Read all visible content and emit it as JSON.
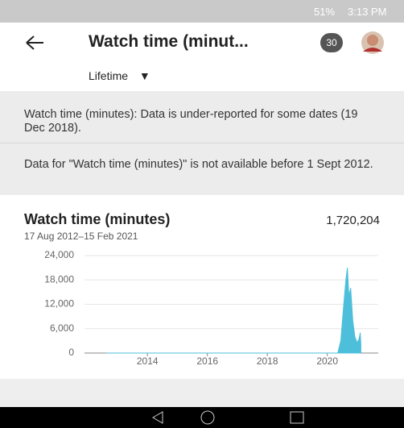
{
  "status_bar": {
    "battery": "51%",
    "time": "3:13 PM"
  },
  "header": {
    "title": "Watch time (minut...",
    "badge": "30",
    "period": "Lifetime"
  },
  "notices": [
    "Watch time (minutes): Data is under-reported for some dates (19 Dec 2018).",
    "Data for \"Watch time (minutes)\" is not available before 1 Sept 2012."
  ],
  "chart_data": {
    "type": "area",
    "title": "Watch time (minutes)",
    "total": "1,720,204",
    "subtitle": "17 Aug 2012–15 Feb 2021",
    "x": [
      2012.63,
      2020.35,
      2020.45,
      2020.55,
      2020.62,
      2020.67,
      2020.72,
      2020.78,
      2020.85,
      2020.92,
      2021.0,
      2021.06,
      2021.1,
      2021.12
    ],
    "values": [
      0,
      0,
      3000,
      12000,
      18000,
      21000,
      14000,
      16000,
      8000,
      4000,
      2500,
      3500,
      5000,
      2000
    ],
    "color": "#4dbfdb",
    "xlim": [
      2011.9,
      2021.7
    ],
    "xticks": [
      2014,
      2016,
      2018,
      2020
    ],
    "ylim": [
      0,
      24000
    ],
    "yticks": [
      0,
      {
        "value": 6000,
        "label": "6,000"
      },
      {
        "value": 12000,
        "label": "12,000"
      },
      {
        "value": 18000,
        "label": "18,000"
      },
      {
        "value": 24000,
        "label": "24,000"
      }
    ],
    "grid": true
  }
}
